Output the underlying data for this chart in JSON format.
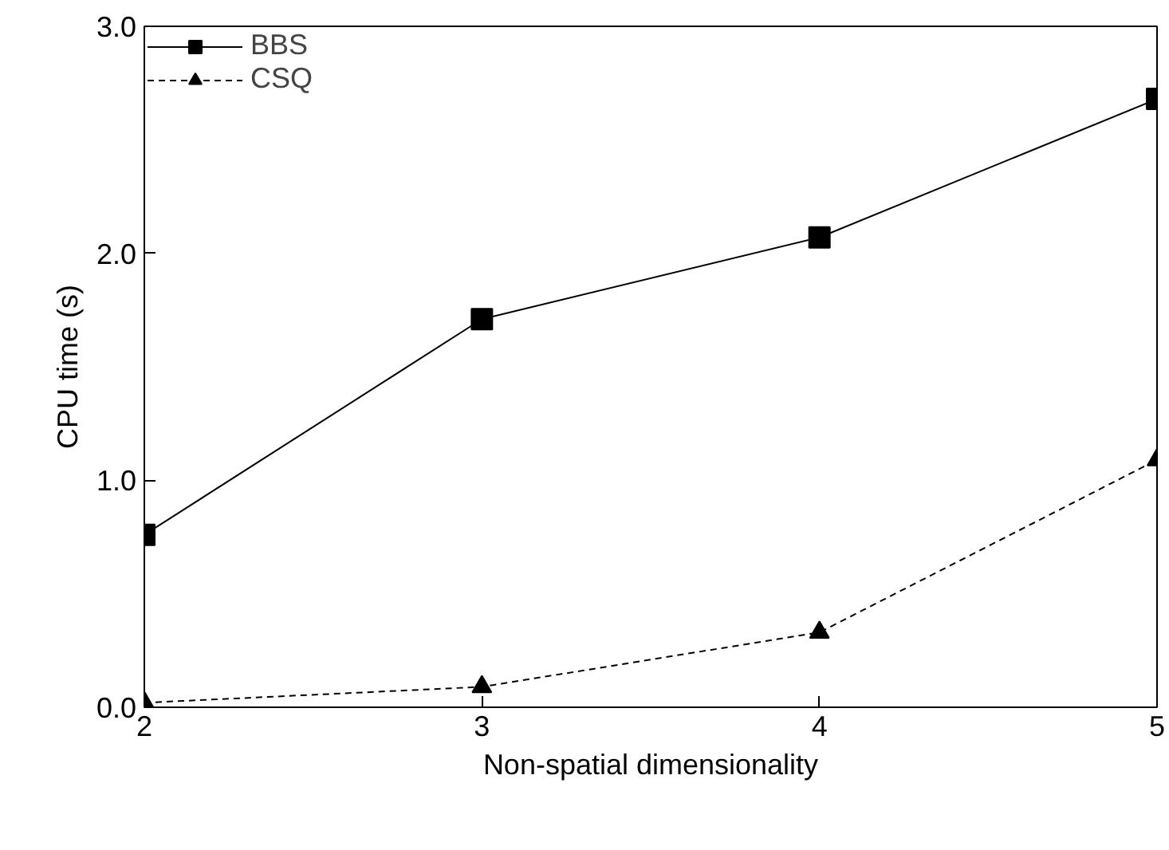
{
  "chart_data": {
    "type": "line",
    "xlabel": "Non-spatial dimensionality",
    "ylabel": "CPU time (s)",
    "x": [
      2,
      3,
      4,
      5
    ],
    "series": [
      {
        "name": "BBS",
        "color": "#000000",
        "values": [
          0.76,
          1.71,
          2.07,
          2.68
        ],
        "marker": "square",
        "line_style": "solid"
      },
      {
        "name": "CSQ",
        "color": "#000000",
        "values": [
          0.02,
          0.09,
          0.33,
          1.09
        ],
        "marker": "triangle",
        "line_style": "dashed"
      }
    ],
    "xlim": [
      2,
      5
    ],
    "ylim": [
      0,
      3
    ],
    "xticks": [
      2,
      3,
      4,
      5
    ],
    "yticks": [
      {
        "value": 0,
        "label": "0.0"
      },
      {
        "value": 1,
        "label": "1.0"
      },
      {
        "value": 2,
        "label": "2.0"
      },
      {
        "value": 3,
        "label": "3.0"
      }
    ],
    "grid": false,
    "legend": "top left"
  }
}
